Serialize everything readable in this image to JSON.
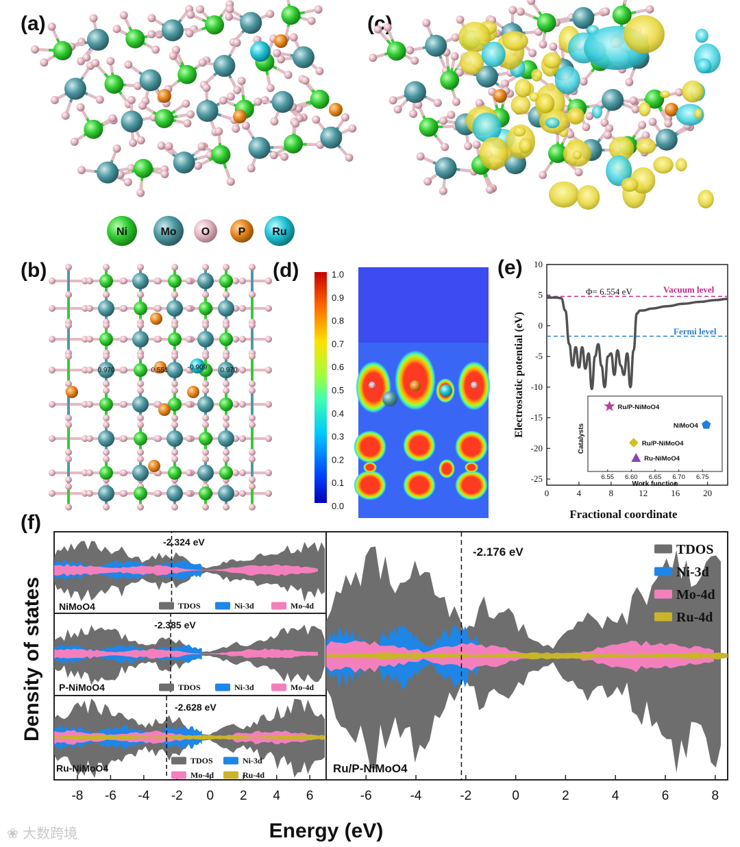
{
  "figure": {
    "panel_labels": {
      "a": "(a)",
      "b": "(b)",
      "c": "(c)",
      "d": "(d)",
      "e": "(e)",
      "f": "(f)"
    },
    "legend_a": [
      {
        "label": "Ni",
        "color": "#33cc33"
      },
      {
        "label": "Mo",
        "color": "#4f9aa3"
      },
      {
        "label": "O",
        "color": "#e7b9c4"
      },
      {
        "label": "P",
        "color": "#e8881f"
      },
      {
        "label": "Ru",
        "color": "#22c4d6"
      }
    ],
    "panel_b_charges": [
      "0.970",
      "0.551",
      "-0.909",
      "0.970"
    ],
    "panel_d_colorbar": {
      "ticks": [
        "1.0",
        "0.9",
        "0.8",
        "0.7",
        "0.6",
        "0.5",
        "0.4",
        "0.3",
        "0.2",
        "0.1",
        "0.0"
      ]
    },
    "watermark": "大数跨境"
  },
  "chart_data": [
    {
      "id": "e",
      "type": "line",
      "xlabel": "Fractional coordinate",
      "ylabel": "Electrostatic potential (eV)",
      "xlim": [
        0,
        22.5
      ],
      "ylim": [
        -26,
        10
      ],
      "xticks": [
        "0",
        "4",
        "8",
        "12",
        "16",
        "20"
      ],
      "yticks": [
        "10",
        "5",
        "0",
        "-5",
        "-10",
        "-15",
        "-20",
        "-25"
      ],
      "annotations": {
        "phi": "Φ= 6.554 eV",
        "vacuum": "Vacuum level",
        "fermi": "Fermi level"
      },
      "vacuum_level": 4.8,
      "fermi_level": -1.7,
      "x": [
        0,
        0.6,
        1.2,
        1.8,
        2.3,
        2.8,
        3.2,
        3.6,
        4.0,
        4.4,
        4.8,
        5.2,
        5.6,
        6.0,
        6.4,
        6.8,
        7.2,
        7.6,
        8.0,
        8.4,
        8.8,
        9.2,
        9.6,
        10.0,
        10.4,
        10.8,
        11.2,
        11.6,
        12.0,
        13,
        15,
        17,
        19,
        21,
        22.5
      ],
      "y": [
        4.6,
        4.6,
        4.6,
        4.5,
        2.5,
        -3,
        -6.5,
        -3.5,
        -6.8,
        -3.5,
        -7,
        -4.5,
        -10.3,
        -5,
        -3,
        -6.5,
        -10,
        -5,
        -4.5,
        -8,
        -4,
        -6.5,
        -8,
        -4.5,
        -10,
        -4,
        2.0,
        2.5,
        2.5,
        2.8,
        3.2,
        3.6,
        3.9,
        4.2,
        4.4
      ],
      "inset": {
        "xlabel": "Work function",
        "ylabel": "Catalysts",
        "xticks": [
          "6.55",
          "6.60",
          "6.65",
          "6.70",
          "6.75"
        ],
        "xlim": [
          6.52,
          6.78
        ],
        "points": [
          {
            "name": "Ru/P-NiMoO4",
            "value": 6.554,
            "color": "#b5449b",
            "marker": "star"
          },
          {
            "name": "NiMoO4",
            "value": 6.758,
            "color": "#1f7fe0",
            "marker": "pentagon"
          },
          {
            "name": "Ru/P-NiMoO4",
            "value": 6.605,
            "color": "#d4c122",
            "marker": "diamond"
          },
          {
            "name": "Ru-NiMoO4",
            "value": 6.61,
            "color": "#8844b5",
            "marker": "triangle"
          }
        ]
      }
    },
    {
      "id": "f",
      "type": "area",
      "xlabel": "Energy (eV)",
      "ylabel": "Density of states",
      "subplots": [
        {
          "name": "NiMoO4",
          "dband": "-2.324 eV",
          "legend": [
            "TDOS",
            "Ni-3d",
            "Mo-4d"
          ]
        },
        {
          "name": "P-NiMoO4",
          "dband": "-2.385 eV",
          "legend": [
            "TDOS",
            "Ni-3d",
            "Mo-4d"
          ]
        },
        {
          "name": "Ru-NiMoO4",
          "dband": "-2.628 eV",
          "legend": [
            "TDOS",
            "Ni-3d",
            "Mo-4d",
            "Ru-4d"
          ]
        },
        {
          "name": "Ru/P-NiMoO4",
          "dband": "-2.176 eV",
          "legend": [
            "TDOS",
            "Ni-3d",
            "Mo-4d",
            "Ru-4d"
          ]
        }
      ],
      "left_xticks": [
        "-8",
        "-6",
        "-4",
        "-2",
        "0",
        "2",
        "4",
        "6"
      ],
      "right_xticks": [
        "-6",
        "-4",
        "-2",
        "0",
        "2",
        "4",
        "6",
        "8"
      ],
      "series_colors": {
        "TDOS": "#6e6e6e",
        "Ni-3d": "#1e86e6",
        "Mo-4d": "#f47fbd",
        "Ru-4d": "#c9b42a"
      }
    }
  ]
}
